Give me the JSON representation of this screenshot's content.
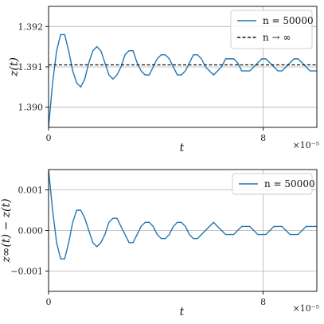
{
  "chart_data": [
    {
      "type": "line",
      "ylabel": "z(t)",
      "xlabel": "t",
      "x_offset_label": "×10⁻⁵",
      "xlim": [
        0,
        10
      ],
      "ylim": [
        1.3895,
        1.3925
      ],
      "x_ticks": [
        0,
        8
      ],
      "x_tick_labels": [
        "0",
        "8"
      ],
      "y_ticks": [
        1.39,
        1.391,
        1.392
      ],
      "y_tick_labels": [
        "1.390",
        "1.391",
        "1.392"
      ],
      "grid": true,
      "legend": "top-right",
      "series": [
        {
          "name": "n = 50000",
          "style": "solid",
          "color": "#1f77b4",
          "x": [
            0,
            0.15,
            0.3,
            0.45,
            0.6,
            0.75,
            0.9,
            1.05,
            1.2,
            1.35,
            1.5,
            1.65,
            1.8,
            1.95,
            2.1,
            2.25,
            2.4,
            2.55,
            2.7,
            2.85,
            3.0,
            3.15,
            3.3,
            3.45,
            3.6,
            3.75,
            3.9,
            4.05,
            4.2,
            4.35,
            4.5,
            4.65,
            4.8,
            4.95,
            5.1,
            5.25,
            5.4,
            5.55,
            5.7,
            5.85,
            6.0,
            6.15,
            6.3,
            6.45,
            6.6,
            6.75,
            6.9,
            7.05,
            7.2,
            7.35,
            7.5,
            7.65,
            7.8,
            7.95,
            8.1,
            8.25,
            8.4,
            8.55,
            8.7,
            8.85,
            9.0,
            9.15,
            9.3,
            9.45,
            9.6,
            9.75,
            9.9,
            10.0
          ],
          "y": [
            1.3895,
            1.3906,
            1.3914,
            1.3918,
            1.3918,
            1.3914,
            1.3909,
            1.3906,
            1.3905,
            1.3907,
            1.3911,
            1.3914,
            1.3915,
            1.3914,
            1.3911,
            1.3908,
            1.3907,
            1.3908,
            1.391,
            1.3913,
            1.3914,
            1.3914,
            1.3911,
            1.3909,
            1.3908,
            1.3908,
            1.391,
            1.3912,
            1.3913,
            1.3913,
            1.3912,
            1.391,
            1.3908,
            1.3908,
            1.3909,
            1.3911,
            1.3913,
            1.3913,
            1.3912,
            1.391,
            1.3909,
            1.3908,
            1.3909,
            1.391,
            1.3912,
            1.3912,
            1.3912,
            1.3911,
            1.3909,
            1.3909,
            1.3909,
            1.391,
            1.3911,
            1.3912,
            1.3912,
            1.3911,
            1.391,
            1.3909,
            1.3909,
            1.391,
            1.3911,
            1.3912,
            1.3912,
            1.3911,
            1.391,
            1.3909,
            1.3909,
            1.3909
          ]
        },
        {
          "name": "n → ∞",
          "style": "dashed",
          "color": "#111111",
          "x": [
            0,
            10
          ],
          "y": [
            1.39105,
            1.39105
          ]
        }
      ]
    },
    {
      "type": "line",
      "ylabel": "z∞(t) − z(t)",
      "xlabel": "t",
      "x_offset_label": "×10⁻⁵",
      "xlim": [
        0,
        10
      ],
      "ylim": [
        -0.0015,
        0.0015
      ],
      "x_ticks": [
        0,
        8
      ],
      "x_tick_labels": [
        "0",
        "8"
      ],
      "y_ticks": [
        -0.001,
        0.0,
        0.001
      ],
      "y_tick_labels": [
        "−0.001",
        "0.000",
        "0.001"
      ],
      "grid": true,
      "legend": "top-right",
      "series": [
        {
          "name": "n = 50000",
          "style": "solid",
          "color": "#1f77b4",
          "x": [
            0,
            0.15,
            0.3,
            0.45,
            0.6,
            0.75,
            0.9,
            1.05,
            1.2,
            1.35,
            1.5,
            1.65,
            1.8,
            1.95,
            2.1,
            2.25,
            2.4,
            2.55,
            2.7,
            2.85,
            3.0,
            3.15,
            3.3,
            3.45,
            3.6,
            3.75,
            3.9,
            4.05,
            4.2,
            4.35,
            4.5,
            4.65,
            4.8,
            4.95,
            5.1,
            5.25,
            5.4,
            5.55,
            5.7,
            5.85,
            6.0,
            6.15,
            6.3,
            6.45,
            6.6,
            6.75,
            6.9,
            7.05,
            7.2,
            7.35,
            7.5,
            7.65,
            7.8,
            7.95,
            8.1,
            8.25,
            8.4,
            8.55,
            8.7,
            8.85,
            9.0,
            9.15,
            9.3,
            9.45,
            9.6,
            9.75,
            9.9,
            10.0
          ],
          "y": [
            0.0015,
            0.0005,
            -0.0003,
            -0.0007,
            -0.0007,
            -0.0003,
            0.0002,
            0.0005,
            0.0005,
            0.0003,
            0.0,
            -0.0003,
            -0.0004,
            -0.0003,
            -0.0001,
            0.0002,
            0.0003,
            0.0003,
            0.0001,
            -0.0001,
            -0.0003,
            -0.0003,
            -0.0001,
            0.0001,
            0.0002,
            0.0002,
            0.0001,
            -0.0001,
            -0.0002,
            -0.0002,
            -0.0001,
            0.0001,
            0.0002,
            0.0002,
            0.0001,
            -0.0001,
            -0.0002,
            -0.0002,
            -0.0001,
            0.0,
            0.0001,
            0.0002,
            0.0001,
            0.0,
            -0.0001,
            -0.0001,
            -0.0001,
            0.0,
            0.0001,
            0.0001,
            0.0001,
            0.0,
            -0.0001,
            -0.0001,
            -0.0001,
            0.0,
            0.0001,
            0.0001,
            0.0001,
            0.0,
            -0.0001,
            -0.0001,
            -0.0001,
            0.0,
            0.0001,
            0.0001,
            0.0001,
            0.0001
          ]
        }
      ]
    }
  ]
}
